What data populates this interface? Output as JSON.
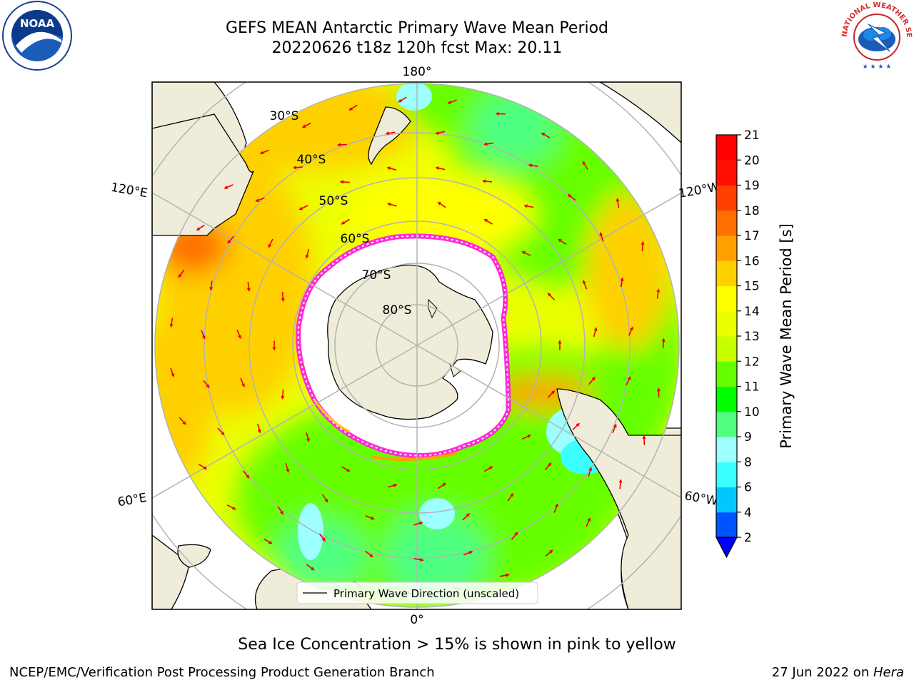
{
  "header": {
    "title_line1": "GEFS MEAN Antarctic Primary Wave Mean Period",
    "title_line2": "20220626 t18z 120h fcst   Max: 20.11"
  },
  "logos": {
    "left": "NOAA",
    "right": "NATIONAL WEATHER SERVICE"
  },
  "map": {
    "meridian_labels": {
      "top": "180°",
      "bottom": "0°",
      "upper_left": "120°E",
      "upper_right": "120°W",
      "lower_left": "60°E",
      "lower_right": "60°W"
    },
    "latitude_labels": [
      "30°S",
      "40°S",
      "50°S",
      "60°S",
      "70°S",
      "80°S"
    ],
    "legend_label": "Primary Wave Direction (unscaled)"
  },
  "colorbar": {
    "label": "Primary Wave Mean Period [s]",
    "ticks": [
      "2",
      "4",
      "6",
      "8",
      "9",
      "10",
      "11",
      "12",
      "13",
      "14",
      "15",
      "16",
      "17",
      "18",
      "19",
      "20",
      "21"
    ],
    "colors": [
      "#0054ff",
      "#00c8ff",
      "#3cffff",
      "#9dffff",
      "#50ff82",
      "#00ff00",
      "#66ff00",
      "#c8ff00",
      "#ecff00",
      "#ffff00",
      "#ffd000",
      "#ffa000",
      "#ff7000",
      "#ff4000",
      "#ff1000",
      "#ff0000"
    ],
    "extend_color": "#0000ff"
  },
  "footer": {
    "note": "Sea Ice Concentration > 15% is shown in pink to yellow",
    "left": "NCEP/EMC/Verification Post Processing Product Generation Branch",
    "date": "27 Jun 2022 on ",
    "machine": "Hera"
  }
}
